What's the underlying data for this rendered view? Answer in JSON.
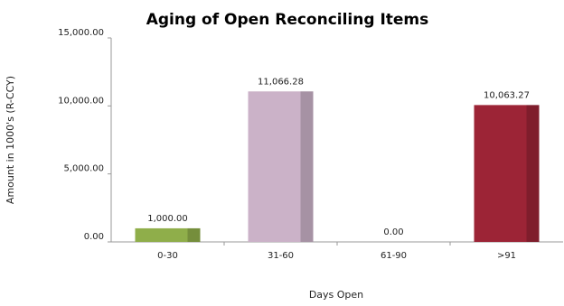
{
  "chart_data": {
    "type": "bar",
    "title": "Aging of Open Reconciling Items",
    "x_label": "Days Open",
    "y_label": "Amount in 1000's (R-CCY)",
    "categories": [
      "0-30",
      "31-60",
      "61-90",
      ">91"
    ],
    "values": [
      1000,
      11066.28,
      0,
      10063.27
    ],
    "value_labels": [
      "1,000.00",
      "11,066.28",
      "0.00",
      "10,063.27"
    ],
    "colors": [
      "#8fae4a",
      "#cbb2c8",
      "#bbbbbb",
      "#9c2436"
    ],
    "ylim": [
      0,
      15000
    ],
    "yticks": [
      {
        "value": 0,
        "label": "0.00"
      },
      {
        "value": 5000,
        "label": "5,000.00"
      },
      {
        "value": 10000,
        "label": "10,000.00"
      },
      {
        "value": 15000,
        "label": "15,000.00"
      }
    ],
    "grid": false
  }
}
